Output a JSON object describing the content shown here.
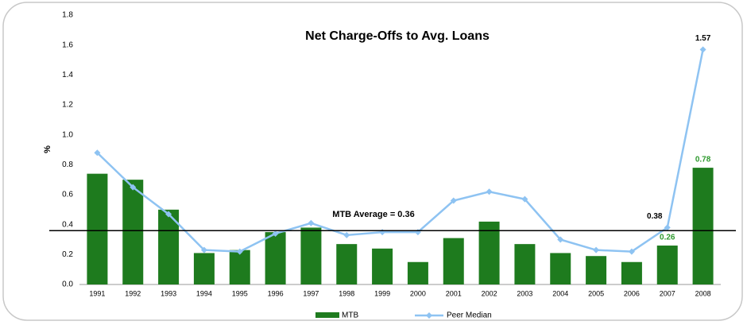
{
  "chart_data": {
    "type": "bar_line",
    "title": "Net Charge-Offs to Avg. Loans",
    "ylabel": "%",
    "categories": [
      "1991",
      "1992",
      "1993",
      "1994",
      "1995",
      "1996",
      "1997",
      "1998",
      "1999",
      "2000",
      "2001",
      "2002",
      "2003",
      "2004",
      "2005",
      "2006",
      "2007",
      "2008"
    ],
    "series": [
      {
        "name": "MTB",
        "type": "bar",
        "color": "#1e7b1e",
        "label_color": "#2e9a2e",
        "values": [
          0.74,
          0.7,
          0.5,
          0.21,
          0.23,
          0.35,
          0.38,
          0.27,
          0.24,
          0.15,
          0.31,
          0.42,
          0.27,
          0.21,
          0.19,
          0.15,
          0.26,
          0.78
        ],
        "value_labels": [
          null,
          null,
          null,
          null,
          null,
          null,
          null,
          null,
          null,
          null,
          null,
          null,
          null,
          null,
          null,
          null,
          "0.26",
          "0.78"
        ]
      },
      {
        "name": "Peer Median",
        "type": "line",
        "color": "#8ec3f2",
        "label_color": "#000000",
        "values": [
          0.88,
          0.65,
          0.47,
          0.23,
          0.22,
          0.34,
          0.41,
          0.33,
          0.35,
          0.35,
          0.56,
          0.62,
          0.57,
          0.3,
          0.23,
          0.22,
          0.38,
          1.57
        ],
        "value_labels": [
          null,
          null,
          null,
          null,
          null,
          null,
          null,
          null,
          null,
          null,
          null,
          null,
          null,
          null,
          null,
          null,
          "0.38",
          "1.57"
        ]
      }
    ],
    "average": {
      "label": "MTB Average = 0.36",
      "value": 0.36
    },
    "ylim": [
      0,
      1.8
    ],
    "yticks": [
      {
        "value": 0,
        "label": "0.0"
      },
      0.2,
      0.4,
      0.6,
      0.8,
      {
        "value": 1,
        "label": "1.0"
      },
      1.2,
      1.4,
      1.6,
      1.8
    ]
  }
}
